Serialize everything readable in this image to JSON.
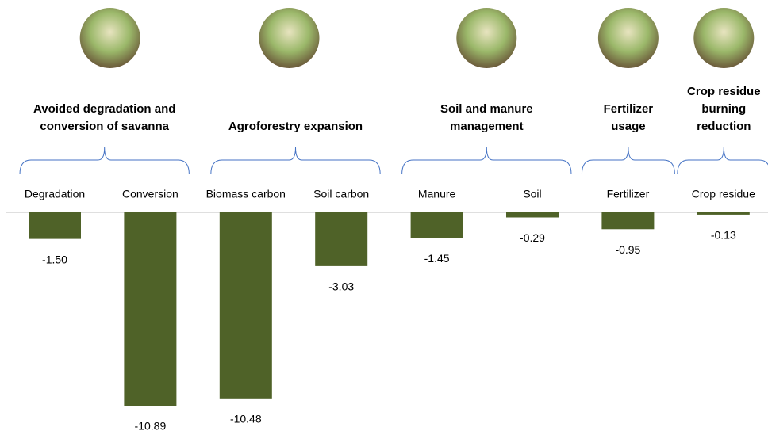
{
  "chart_data": {
    "type": "bar",
    "color": "#4f6228",
    "baseline_color": "#bfbfbf",
    "brace_color": "#4472c4",
    "groups": [
      {
        "label": [
          "Avoided degradation and",
          "conversion of savanna"
        ],
        "categories": [
          "Degradation",
          "Conversion"
        ],
        "values": [
          -1.5,
          -10.89
        ],
        "value_labels": [
          "-1.50",
          "-10.89"
        ]
      },
      {
        "label": [
          "Agroforestry expansion"
        ],
        "categories": [
          "Biomass carbon",
          "Soil carbon"
        ],
        "values": [
          -10.48,
          -3.03
        ],
        "value_labels": [
          "-10.48",
          "-3.03"
        ]
      },
      {
        "label": [
          "Soil and manure",
          "management"
        ],
        "categories": [
          "Manure",
          "Soil"
        ],
        "values": [
          -1.45,
          -0.29
        ],
        "value_labels": [
          "-1.45",
          "-0.29"
        ]
      },
      {
        "label": [
          "Fertilizer",
          "usage"
        ],
        "categories": [
          "Fertilizer"
        ],
        "values": [
          -0.95
        ],
        "value_labels": [
          "-0.95"
        ]
      },
      {
        "label": [
          "Crop residue",
          "burning",
          "reduction"
        ],
        "categories": [
          "Crop residue"
        ],
        "values": [
          -0.13
        ],
        "value_labels": [
          "-0.13"
        ]
      }
    ]
  }
}
